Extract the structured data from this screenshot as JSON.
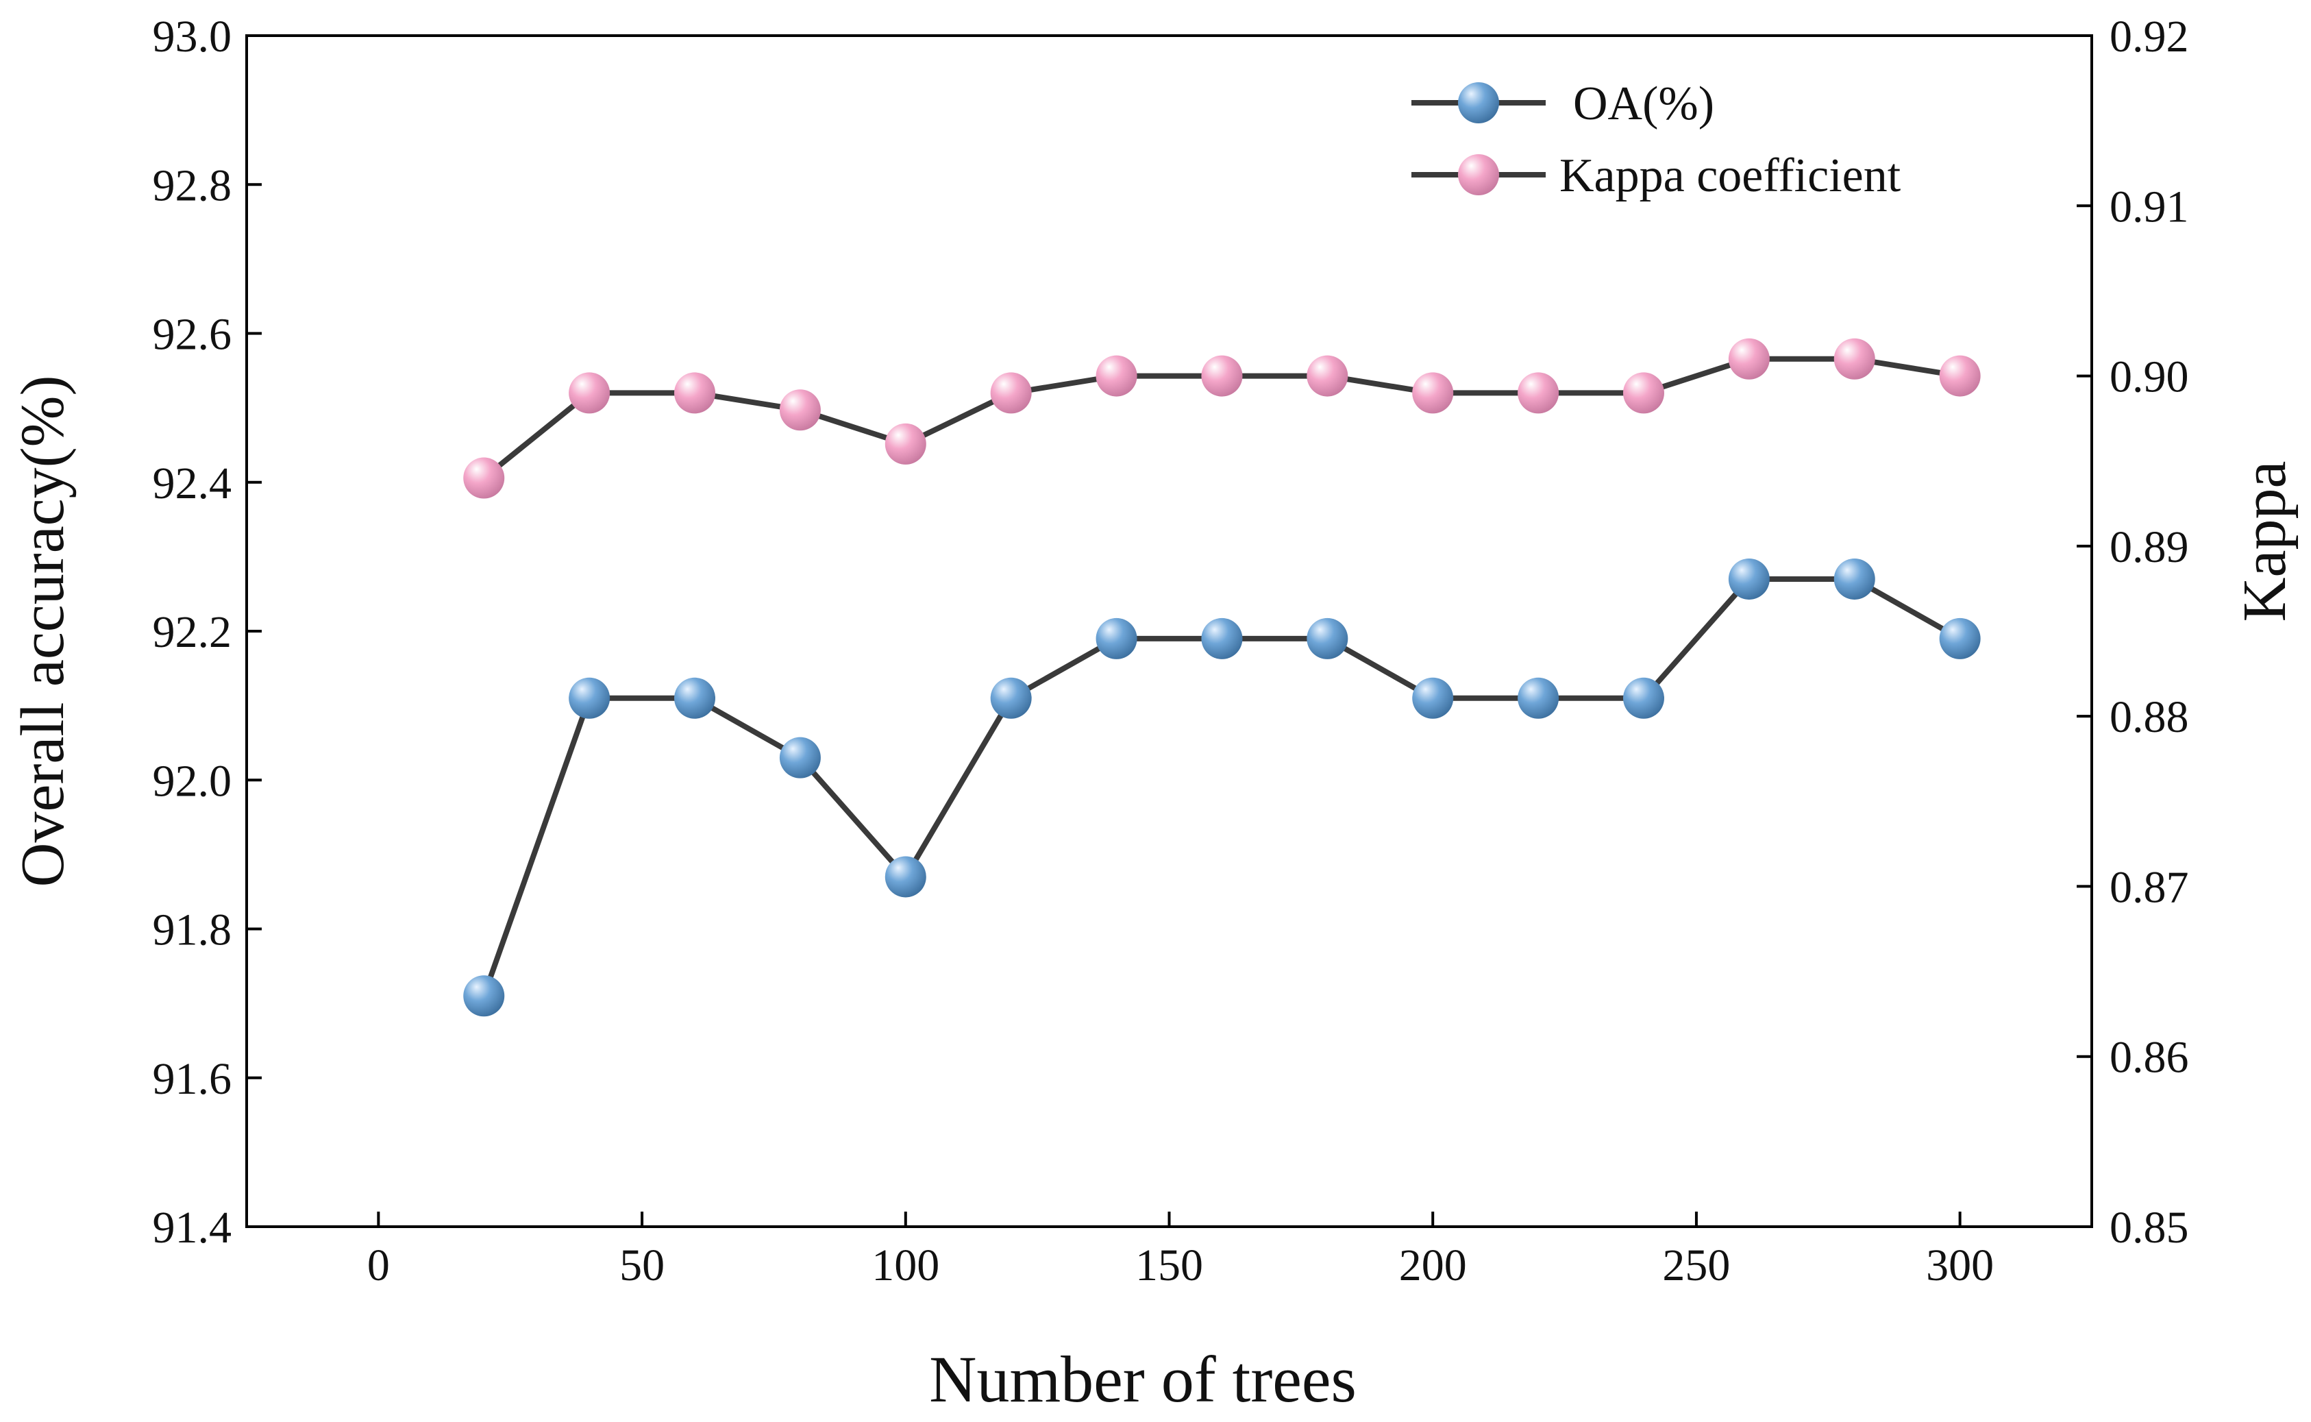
{
  "chart_data": {
    "type": "line",
    "xlabel": "Number of trees",
    "ylabel_left": "Overall accuracy(%)",
    "ylabel_right": "Kappa",
    "xlim": [
      -25,
      325
    ],
    "ylim_left": [
      91.4,
      93.0
    ],
    "ylim_right": [
      0.85,
      0.92
    ],
    "x_ticks": [
      0,
      50,
      100,
      150,
      200,
      250,
      300
    ],
    "x_tick_labels": [
      "0",
      "50",
      "100",
      "150",
      "200",
      "250",
      "300"
    ],
    "y_ticks_left": [
      91.4,
      91.6,
      91.8,
      92.0,
      92.2,
      92.4,
      92.6,
      92.8,
      93.0
    ],
    "y_tick_labels_left": [
      "91.4",
      "91.6",
      "91.8",
      "92.0",
      "92.2",
      "92.4",
      "92.6",
      "92.8",
      "93.0"
    ],
    "y_ticks_right": [
      0.85,
      0.86,
      0.87,
      0.88,
      0.89,
      0.9,
      0.91,
      0.92
    ],
    "y_tick_labels_right": [
      "0.85",
      "0.86",
      "0.87",
      "0.88",
      "0.89",
      "0.90",
      "0.91",
      "0.92"
    ],
    "x": [
      20,
      40,
      60,
      80,
      100,
      120,
      140,
      160,
      180,
      200,
      220,
      240,
      260,
      280,
      300
    ],
    "series": [
      {
        "name": "OA(%)",
        "axis": "left",
        "values": [
          91.71,
          92.11,
          92.11,
          92.03,
          91.87,
          92.11,
          92.19,
          92.19,
          92.19,
          92.11,
          92.11,
          92.11,
          92.27,
          92.27,
          92.19
        ],
        "color": "#6fa6d8",
        "highlight": "#e8f3ff",
        "edge": "#3c6f9e"
      },
      {
        "name": "Kappa coefficient",
        "axis": "right",
        "values": [
          0.894,
          0.899,
          0.899,
          0.898,
          0.896,
          0.899,
          0.9,
          0.9,
          0.9,
          0.899,
          0.899,
          0.899,
          0.901,
          0.901,
          0.9
        ],
        "color": "#f4a6c9",
        "highlight": "#ffffff",
        "edge": "#c7799f"
      }
    ],
    "line_color": "#3a3a3a",
    "legend": {
      "position": "top-right",
      "labels": [
        "OA(%)",
        "Kappa coefficient"
      ]
    },
    "grid": false
  }
}
